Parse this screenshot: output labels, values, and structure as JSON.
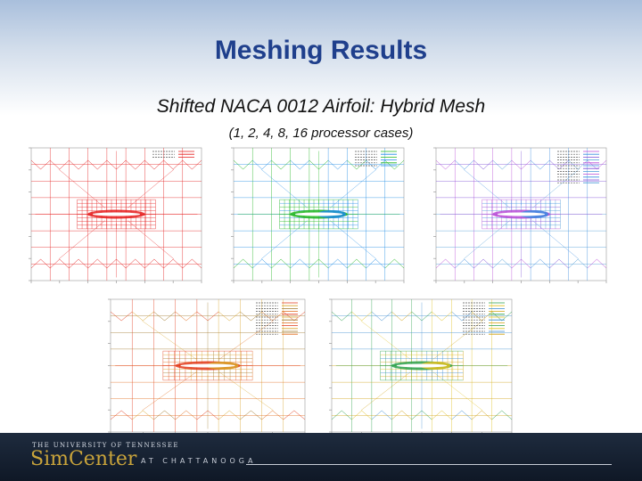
{
  "slide": {
    "title": "Meshing Results",
    "subtitle": "Shifted NACA 0012 Airfoil: Hybrid Mesh",
    "caption": "(1, 2, 4, 8, 16 processor cases)"
  },
  "plots": [
    {
      "case": 1,
      "colors": [
        "#e51d1d"
      ]
    },
    {
      "case": 2,
      "colors": [
        "#1db51d",
        "#1d8ae5"
      ]
    },
    {
      "case": 4,
      "colors": [
        "#b94ad6",
        "#3a8ce0",
        "#7a4ad6",
        "#4a9ad6"
      ]
    },
    {
      "case": 8,
      "colors": [
        "#e23a1a",
        "#d9a52a",
        "#a0782a",
        "#e06a1a"
      ]
    },
    {
      "case": 16,
      "colors": [
        "#2aa04a",
        "#e0c020",
        "#3a8ad0",
        "#d0a010"
      ]
    }
  ],
  "footer": {
    "university": "THE UNIVERSITY OF TENNESSEE",
    "brand": "SimCenter",
    "location": "AT CHATTANOOGA"
  }
}
